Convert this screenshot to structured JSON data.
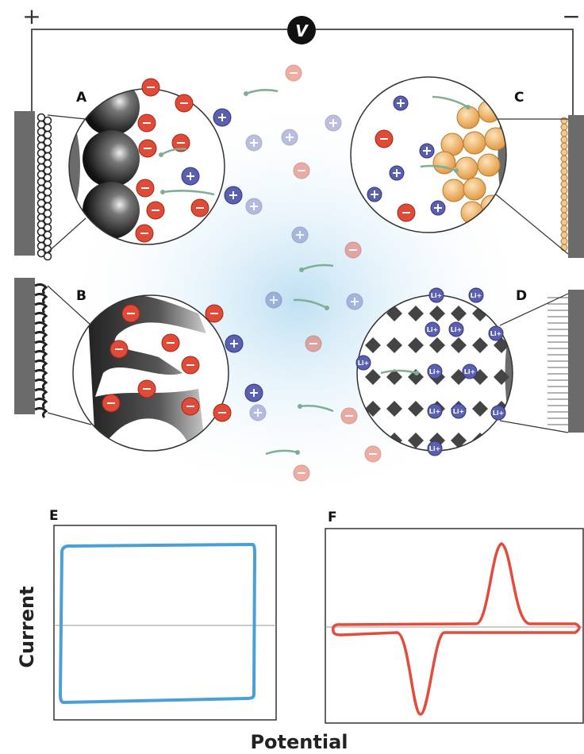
{
  "power": {
    "positive": "+",
    "negative": "−",
    "voltage": "V"
  },
  "panels": {
    "a": "A",
    "b": "B",
    "c": "C",
    "d": "D",
    "e": "E",
    "f": "F"
  },
  "ion_label": "Li+",
  "axes": {
    "y": "Current",
    "x": "Potential"
  }
}
